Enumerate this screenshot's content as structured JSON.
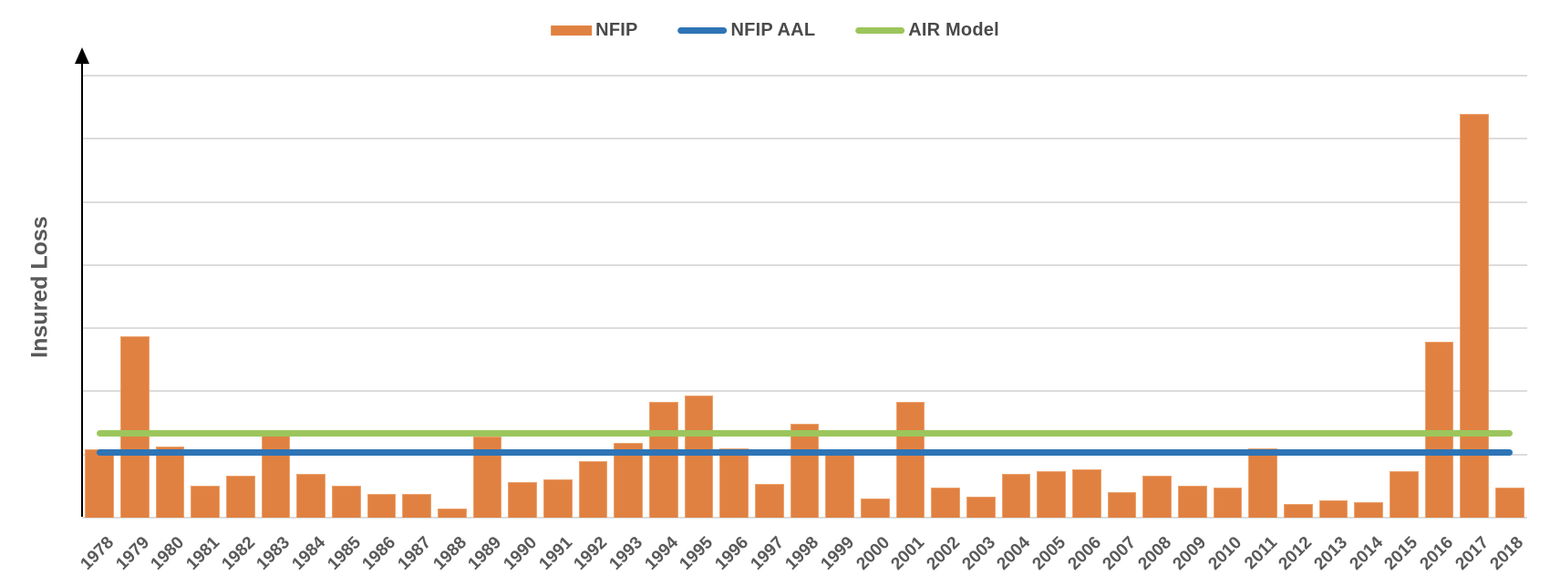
{
  "chart_data": {
    "type": "bar",
    "title": "",
    "xlabel": "",
    "ylabel": "Insured Loss",
    "y_axis_numeric_labels_shown": false,
    "value_units": "relative gridline intervals (1.0 = one horizontal gridline spacing)",
    "ylim": [
      0,
      7
    ],
    "grid": "horizontal",
    "legend_position": "top-center",
    "categories": [
      "1978",
      "1979",
      "1980",
      "1981",
      "1982",
      "1983",
      "1984",
      "1985",
      "1986",
      "1987",
      "1988",
      "1989",
      "1990",
      "1991",
      "1992",
      "1993",
      "1994",
      "1995",
      "1996",
      "1997",
      "1998",
      "1999",
      "2000",
      "2001",
      "2002",
      "2003",
      "2004",
      "2005",
      "2006",
      "2007",
      "2008",
      "2009",
      "2010",
      "2011",
      "2012",
      "2013",
      "2014",
      "2015",
      "2016",
      "2017",
      "2018"
    ],
    "series": [
      {
        "name": "NFIP",
        "type": "bar",
        "color": "#e08142",
        "values": [
          1.08,
          2.87,
          1.13,
          0.51,
          0.67,
          1.31,
          0.7,
          0.5,
          0.38,
          0.37,
          0.15,
          1.28,
          0.56,
          0.61,
          0.89,
          1.19,
          1.84,
          1.93,
          1.09,
          0.54,
          1.48,
          0.99,
          0.3,
          1.83,
          0.48,
          0.33,
          0.69,
          0.73,
          0.77,
          0.4,
          0.67,
          0.51,
          0.48,
          1.09,
          0.21,
          0.28,
          0.25,
          0.73,
          2.78,
          6.4,
          0.48
        ]
      },
      {
        "name": "NFIP AAL",
        "type": "hline",
        "color": "#2e74b6",
        "value": 1.03
      },
      {
        "name": "AIR Model",
        "type": "hline",
        "color": "#9cc65c",
        "value": 1.34
      }
    ]
  },
  "legend": {
    "items": [
      {
        "label": "NFIP",
        "swatch": "bar",
        "color": "#e08142"
      },
      {
        "label": "NFIP AAL",
        "swatch": "line",
        "color": "#2e74b6"
      },
      {
        "label": "AIR Model",
        "swatch": "line",
        "color": "#9cc65c"
      }
    ]
  },
  "colors": {
    "background": "#ffffff",
    "gridline": "#dcdcdc",
    "axis": "#000000",
    "axis_text": "#595959",
    "legend_text": "#4a4a4a"
  }
}
